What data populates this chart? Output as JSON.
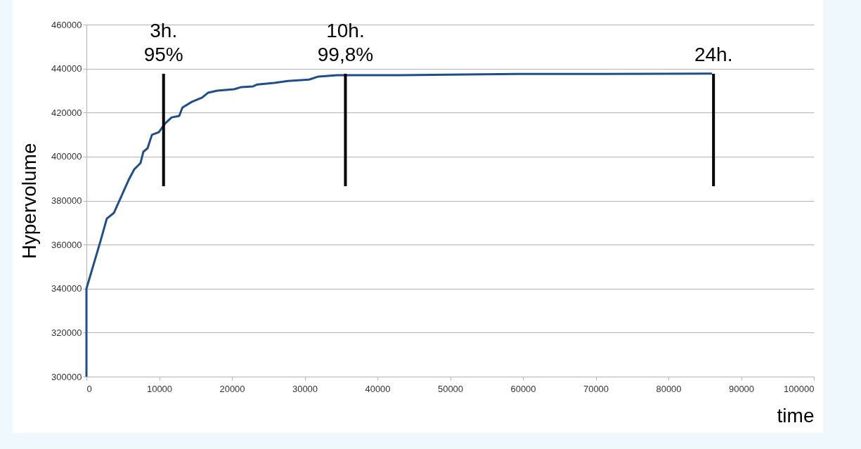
{
  "chart_data": {
    "type": "line",
    "xlabel": "time",
    "ylabel": "Hypervolume",
    "x": [
      0,
      0,
      1930,
      2800,
      3770,
      5800,
      6570,
      7440,
      7820,
      8400,
      9000,
      9950,
      10800,
      11700,
      12750,
      13200,
      14500,
      15900,
      16700,
      18000,
      20300,
      21300,
      22900,
      23500,
      25800,
      27700,
      30600,
      31900,
      34500,
      43200,
      52000,
      59200,
      70500,
      86000
    ],
    "series": [
      {
        "color": "#1f4e8c",
        "values": [
          300000,
          340000,
          361600,
          371800,
          374400,
          389400,
          394200,
          397100,
          402200,
          403800,
          409900,
          411100,
          415000,
          417800,
          418500,
          422300,
          424900,
          426800,
          429000,
          430000,
          430600,
          431600,
          431900,
          432800,
          433500,
          434400,
          435000,
          436400,
          437000,
          437000,
          437300,
          437600,
          437600,
          437700
        ]
      }
    ],
    "xlim": [
      0,
      100000
    ],
    "xticks": [
      0,
      10000,
      20000,
      30000,
      40000,
      50000,
      60000,
      70000,
      80000,
      90000,
      100000
    ],
    "ylim": [
      300000,
      460000
    ],
    "yticks": [
      300000,
      320000,
      340000,
      360000,
      380000,
      400000,
      420000,
      440000,
      460000
    ],
    "grid": "y",
    "marker": "none",
    "line_style": "solid",
    "legend": false,
    "ref_lines": [
      {
        "axis": "x",
        "value": 10600,
        "label": "3h.\n95%",
        "color": "#000000"
      },
      {
        "axis": "x",
        "value": 35600,
        "label": "10h.\n99,8%",
        "color": "#000000"
      },
      {
        "axis": "x",
        "value": 86200,
        "label": "24h.",
        "color": "#000000"
      }
    ]
  }
}
